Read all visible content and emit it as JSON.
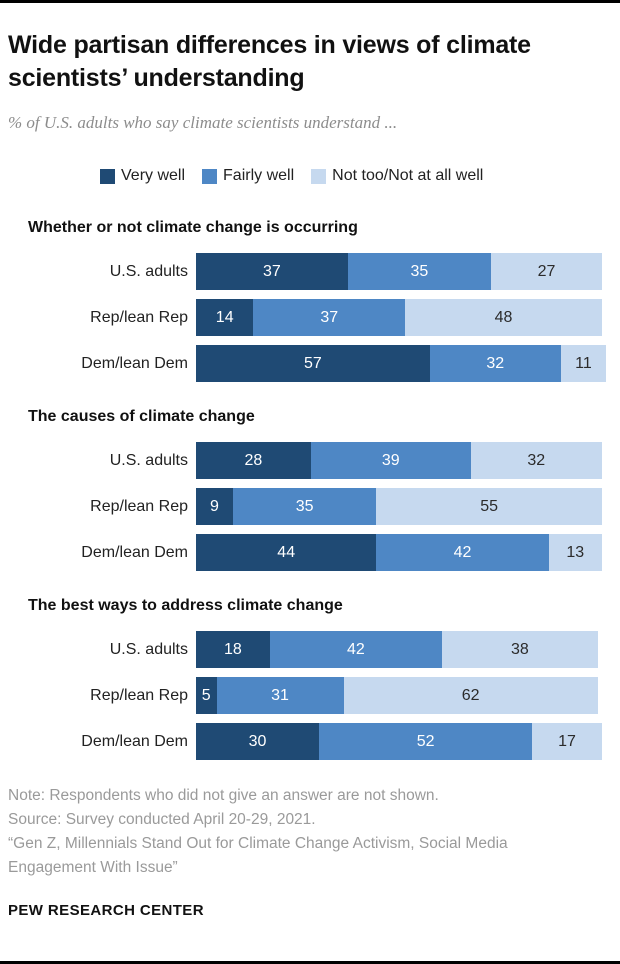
{
  "header": {
    "title": "Wide partisan differences in views of climate scientists’ understanding",
    "subtitle": "% of U.S. adults who say climate scientists understand ..."
  },
  "legend": {
    "items": [
      {
        "label": "Very well",
        "color": "#1f4a74"
      },
      {
        "label": "Fairly well",
        "color": "#4e87c5"
      },
      {
        "label": "Not too/Not at all well",
        "color": "#c6d9ef"
      }
    ]
  },
  "chart_data": {
    "type": "bar",
    "stacked": true,
    "orientation": "horizontal",
    "unit": "%",
    "xlim": [
      0,
      100
    ],
    "series": [
      "Very well",
      "Fairly well",
      "Not too/Not at all well"
    ],
    "colors": [
      "#1f4a74",
      "#4e87c5",
      "#c6d9ef"
    ],
    "groups": [
      {
        "heading": "Whether or not climate change is occurring",
        "rows": [
          {
            "label": "U.S. adults",
            "values": [
              37,
              35,
              27
            ]
          },
          {
            "label": "Rep/lean Rep",
            "values": [
              14,
              37,
              48
            ]
          },
          {
            "label": "Dem/lean Dem",
            "values": [
              57,
              32,
              11
            ]
          }
        ]
      },
      {
        "heading": "The causes of climate change",
        "rows": [
          {
            "label": "U.S. adults",
            "values": [
              28,
              39,
              32
            ]
          },
          {
            "label": "Rep/lean Rep",
            "values": [
              9,
              35,
              55
            ]
          },
          {
            "label": "Dem/lean Dem",
            "values": [
              44,
              42,
              13
            ]
          }
        ]
      },
      {
        "heading": "The best ways to address climate change",
        "rows": [
          {
            "label": "U.S. adults",
            "values": [
              18,
              42,
              38
            ]
          },
          {
            "label": "Rep/lean Rep",
            "values": [
              5,
              31,
              62
            ]
          },
          {
            "label": "Dem/lean Dem",
            "values": [
              30,
              52,
              17
            ]
          }
        ]
      }
    ]
  },
  "footer": {
    "note": "Note: Respondents who did not give an answer are not shown.",
    "source": "Source: Survey conducted April 20-29, 2021.",
    "report": "“Gen Z, Millennials Stand Out for Climate Change Activism, Social Media Engagement With Issue”",
    "brand": "PEW RESEARCH CENTER"
  }
}
